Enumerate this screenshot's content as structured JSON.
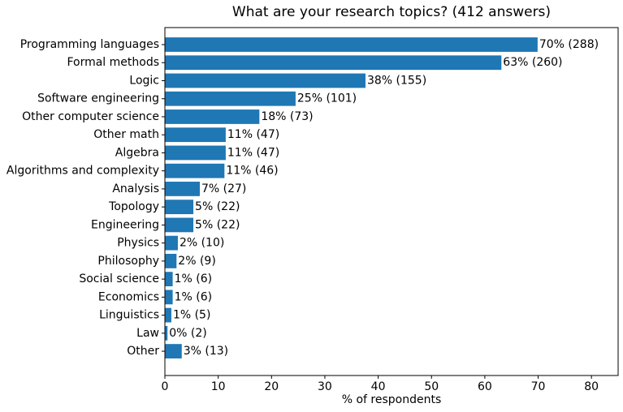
{
  "chart_data": {
    "type": "barh",
    "title": "What are your research topics? (412 answers)",
    "xlabel": "% of respondents",
    "categories": [
      "Programming languages",
      "Formal methods",
      "Logic",
      "Software engineering",
      "Other computer science",
      "Other math",
      "Algebra",
      "Algorithms and complexity",
      "Analysis",
      "Topology",
      "Engineering",
      "Physics",
      "Philosophy",
      "Social science",
      "Economics",
      "Linguistics",
      "Law",
      "Other"
    ],
    "values": [
      69.9,
      63.11,
      37.62,
      24.51,
      17.72,
      11.41,
      11.41,
      11.17,
      6.55,
      5.34,
      5.34,
      2.43,
      2.18,
      1.46,
      1.46,
      1.21,
      0.49,
      3.16
    ],
    "value_labels": [
      "70% (288)",
      "63% (260)",
      "38% (155)",
      "25% (101)",
      "18% (73)",
      "11% (47)",
      "11% (47)",
      "11% (46)",
      "7% (27)",
      "5% (22)",
      "5% (22)",
      "2% (10)",
      "2% (9)",
      "1% (6)",
      "1% (6)",
      "1% (5)",
      "0% (2)",
      "3% (13)"
    ],
    "color": "#1f77b4",
    "xlim": [
      0,
      85
    ],
    "xticks": [
      0,
      10,
      20,
      30,
      40,
      50,
      60,
      70,
      80
    ]
  }
}
